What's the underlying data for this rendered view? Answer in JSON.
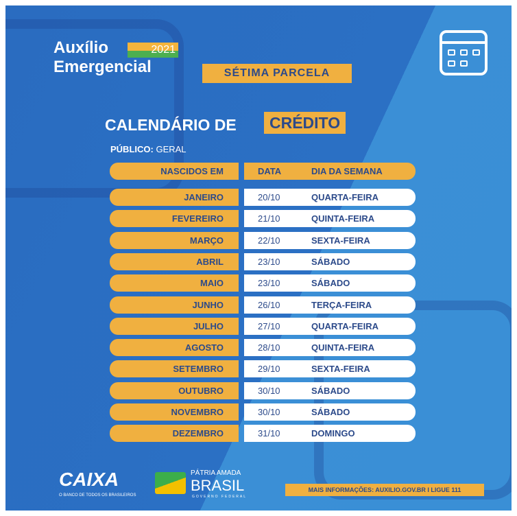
{
  "header": {
    "title_line1": "Auxílio",
    "title_line2": "Emergencial",
    "year": "2021",
    "installment": "SÉTIMA PARCELA"
  },
  "section": {
    "title": "CALENDÁRIO DE",
    "title_highlight": "CRÉDITO",
    "audience_label": "PÚBLICO:",
    "audience_value": "GERAL"
  },
  "table": {
    "headers": [
      "NASCIDOS EM",
      "DATA",
      "DIA DA SEMANA"
    ],
    "rows": [
      {
        "month": "JANEIRO",
        "date": "20/10",
        "weekday": "QUARTA-FEIRA"
      },
      {
        "month": "FEVEREIRO",
        "date": "21/10",
        "weekday": "QUINTA-FEIRA"
      },
      {
        "month": "MARÇO",
        "date": "22/10",
        "weekday": "SEXTA-FEIRA"
      },
      {
        "month": "ABRIL",
        "date": "23/10",
        "weekday": "SÁBADO"
      },
      {
        "month": "MAIO",
        "date": "23/10",
        "weekday": "SÁBADO"
      },
      {
        "month": "JUNHO",
        "date": "26/10",
        "weekday": "TERÇA-FEIRA"
      },
      {
        "month": "JULHO",
        "date": "27/10",
        "weekday": "QUARTA-FEIRA"
      },
      {
        "month": "AGOSTO",
        "date": "28/10",
        "weekday": "QUINTA-FEIRA"
      },
      {
        "month": "SETEMBRO",
        "date": "29/10",
        "weekday": "SEXTA-FEIRA"
      },
      {
        "month": "OUTUBRO",
        "date": "30/10",
        "weekday": "SÁBADO"
      },
      {
        "month": "NOVEMBRO",
        "date": "30/10",
        "weekday": "SÁBADO"
      },
      {
        "month": "DEZEMBRO",
        "date": "31/10",
        "weekday": "DOMINGO"
      }
    ]
  },
  "footer": {
    "caixa": "CAIXA",
    "caixa_tagline": "O BANCO DE TODOS OS BRASILEIROS",
    "patria": "PÁTRIA AMADA",
    "brasil": "BRASIL",
    "governo": "GOVERNO FEDERAL",
    "info": "MAIS INFORMAÇÕES: AUXILIO.GOV.BR I LIGUE 111"
  },
  "colors": {
    "background": "#2a6cc0",
    "accent": "#f0b040",
    "text_dark": "#2c4a8a"
  },
  "icons": {
    "top_right": "calendar-icon"
  }
}
